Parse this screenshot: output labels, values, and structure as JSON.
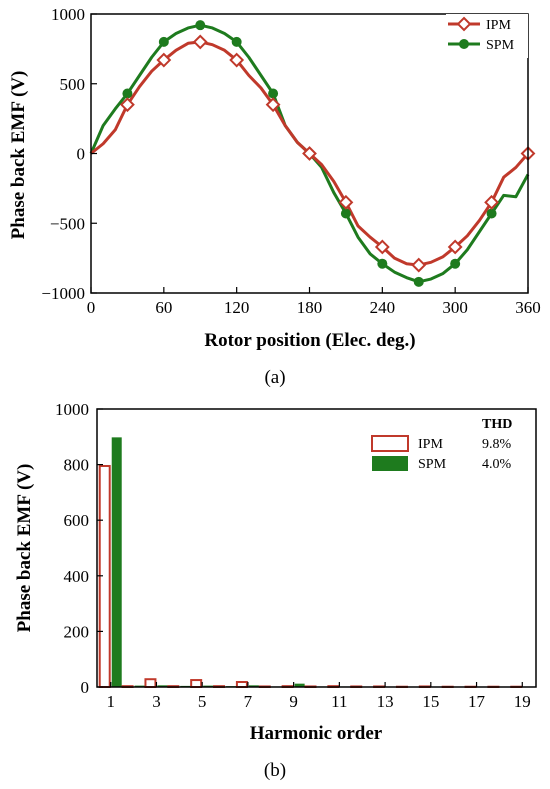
{
  "chart_data": [
    {
      "type": "line",
      "caption": "(a)",
      "xlabel": "Rotor position (Elec. deg.)",
      "ylabel": "Phase back EMF (V)",
      "xlim": [
        0,
        360
      ],
      "ylim": [
        -1000,
        1000
      ],
      "xticks": [
        0,
        60,
        120,
        180,
        240,
        300,
        360
      ],
      "yticks": [
        -1000,
        -500,
        0,
        500,
        1000
      ],
      "x": [
        0,
        10,
        20,
        30,
        40,
        50,
        60,
        70,
        80,
        90,
        100,
        110,
        120,
        130,
        140,
        150,
        160,
        170,
        180,
        190,
        200,
        210,
        220,
        230,
        240,
        250,
        260,
        270,
        280,
        290,
        300,
        310,
        320,
        330,
        340,
        350,
        360
      ],
      "series": [
        {
          "name": "IPM",
          "color": "#c0392b",
          "marker": "diamond-open",
          "values": [
            0,
            70,
            170,
            350,
            480,
            590,
            670,
            740,
            790,
            800,
            780,
            740,
            670,
            560,
            470,
            350,
            200,
            80,
            0,
            -80,
            -200,
            -350,
            -520,
            -600,
            -670,
            -750,
            -790,
            -800,
            -780,
            -740,
            -670,
            -590,
            -480,
            -350,
            -170,
            -100,
            0
          ]
        },
        {
          "name": "SPM",
          "color": "#1e7b1e",
          "marker": "circle-filled",
          "values": [
            0,
            200,
            320,
            430,
            560,
            690,
            800,
            860,
            900,
            920,
            900,
            860,
            800,
            690,
            560,
            430,
            200,
            80,
            0,
            -100,
            -280,
            -430,
            -600,
            -720,
            -790,
            -850,
            -890,
            -920,
            -900,
            -860,
            -790,
            -690,
            -560,
            -430,
            -300,
            -310,
            -150
          ]
        }
      ]
    },
    {
      "type": "bar",
      "caption": "(b)",
      "xlabel": "Harmonic order",
      "ylabel": "Phase back EMF (V)",
      "ylim": [
        0,
        1000
      ],
      "yticks": [
        0,
        200,
        400,
        600,
        800,
        1000
      ],
      "xtick_labels": [
        "1",
        "3",
        "5",
        "7",
        "9",
        "11",
        "13",
        "15",
        "17",
        "19"
      ],
      "categories": [
        1,
        2,
        3,
        4,
        5,
        6,
        7,
        8,
        9,
        10,
        11,
        12,
        13,
        14,
        15,
        16,
        17,
        18,
        19
      ],
      "legend_header": "THD",
      "series": [
        {
          "name": "IPM",
          "thd": "9.8%",
          "color": "#c0392b",
          "style": "outline",
          "values": [
            795,
            3,
            28,
            3,
            25,
            3,
            18,
            2,
            3,
            2,
            3,
            2,
            2,
            1,
            2,
            1,
            1,
            1,
            1
          ]
        },
        {
          "name": "SPM",
          "thd": "4.0%",
          "color": "#1e7b1e",
          "style": "filled",
          "values": [
            898,
            5,
            6,
            4,
            5,
            3,
            6,
            2,
            12,
            2,
            2,
            1,
            1,
            1,
            1,
            1,
            1,
            1,
            1
          ]
        }
      ]
    }
  ]
}
